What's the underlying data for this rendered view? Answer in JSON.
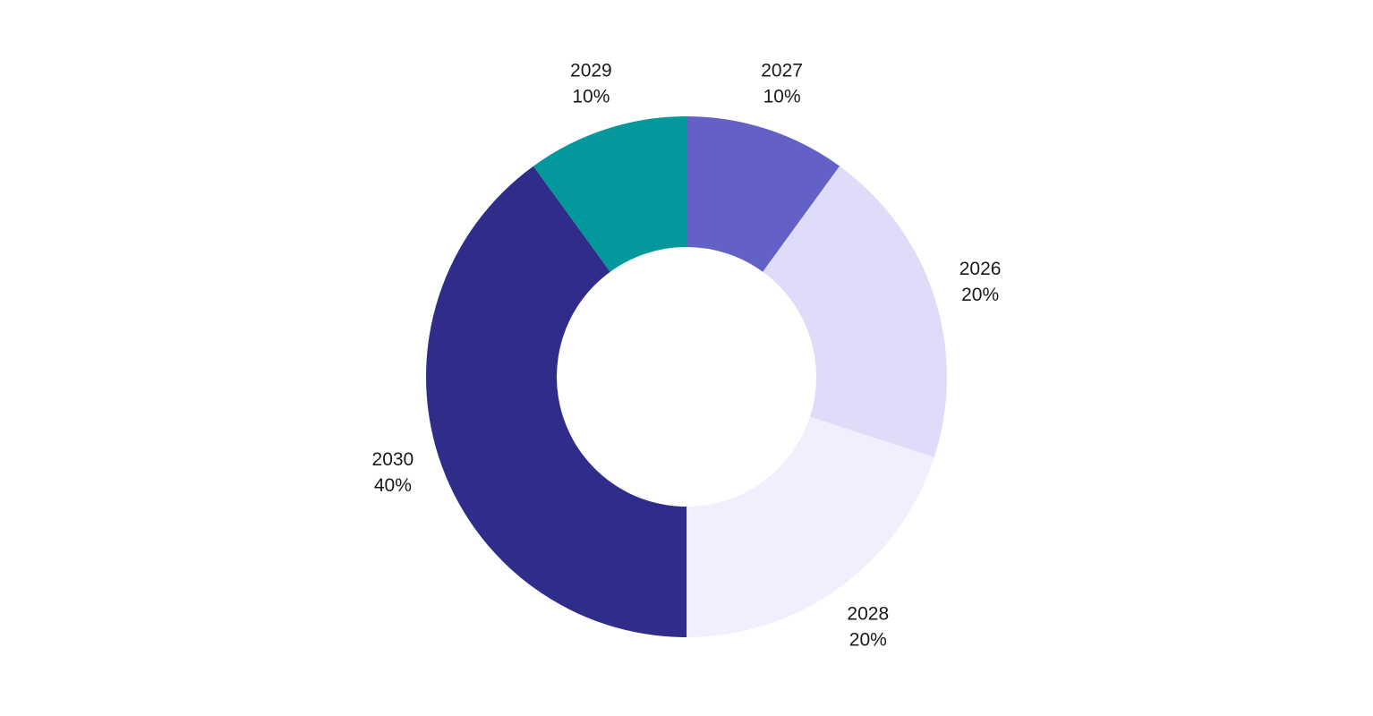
{
  "chart_data": {
    "type": "pie",
    "variant": "donut",
    "title": "",
    "start_angle_deg": 0,
    "direction": "clockwise",
    "slices": [
      {
        "label": "2027",
        "value": 10,
        "value_label": "10%",
        "color": "#6461c6"
      },
      {
        "label": "2026",
        "value": 20,
        "value_label": "20%",
        "color": "#dedcf9"
      },
      {
        "label": "2028",
        "value": 20,
        "value_label": "20%",
        "color": "#efeffd"
      },
      {
        "label": "2030",
        "value": 40,
        "value_label": "40%",
        "color": "#2f2d89"
      },
      {
        "label": "2029",
        "value": 10,
        "value_label": "10%",
        "color": "#03999c"
      }
    ]
  }
}
